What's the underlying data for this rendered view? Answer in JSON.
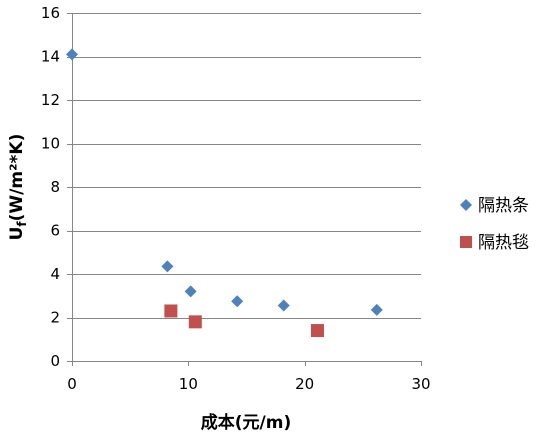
{
  "chart_data": {
    "type": "scatter",
    "title": "",
    "xlabel": "成本(元/m)",
    "ylabel_parts": {
      "main": "U",
      "sub": "f",
      "rest": "(W/m²*K)"
    },
    "xlim": [
      0,
      30
    ],
    "ylim": [
      0,
      16
    ],
    "xticks": [
      0,
      10,
      20,
      30
    ],
    "yticks": [
      0,
      2,
      4,
      6,
      8,
      10,
      12,
      14,
      16
    ],
    "grid": {
      "horizontal": true,
      "vertical": false
    },
    "legend_position": "right",
    "series": [
      {
        "name": "隔热条",
        "marker": "diamond",
        "color": "#4F81BD",
        "points": [
          {
            "x": 0,
            "y": 14.1
          },
          {
            "x": 8.2,
            "y": 4.35
          },
          {
            "x": 10.2,
            "y": 3.2
          },
          {
            "x": 14.2,
            "y": 2.75
          },
          {
            "x": 18.2,
            "y": 2.55
          },
          {
            "x": 26.2,
            "y": 2.35
          }
        ]
      },
      {
        "name": "隔热毯",
        "marker": "square",
        "color": "#C0504D",
        "points": [
          {
            "x": 8.5,
            "y": 2.3
          },
          {
            "x": 10.6,
            "y": 1.8
          },
          {
            "x": 21.1,
            "y": 1.4
          }
        ]
      }
    ]
  }
}
